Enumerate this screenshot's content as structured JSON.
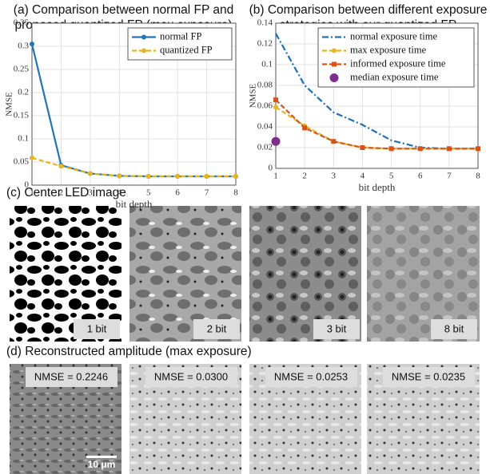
{
  "chart_data": [
    {
      "type": "line",
      "title": "(a) Comparison between normal FP and proposed quantized FP (max exposure)",
      "xlabel": "bit depth",
      "ylabel": "NMSE",
      "x": [
        1,
        2,
        3,
        4,
        5,
        6,
        7,
        8
      ],
      "xlim": [
        1,
        8
      ],
      "xticks": [
        1,
        2,
        3,
        4,
        5,
        6,
        7,
        8
      ],
      "ylim": [
        0,
        0.35
      ],
      "yticks": [
        0,
        0.05,
        0.1,
        0.15,
        0.2,
        0.25,
        0.3,
        0.35
      ],
      "grid": true,
      "legend": "upper right",
      "series": [
        {
          "name": "normal FP",
          "color": "#1f77b4",
          "linestyle": "solid",
          "marker": "o",
          "values": [
            0.305,
            0.043,
            0.025,
            0.02,
            0.019,
            0.019,
            0.019,
            0.019
          ]
        },
        {
          "name": "quantized FP",
          "color": "#e8b420",
          "linestyle": "dashed",
          "marker": "o",
          "values": [
            0.059,
            0.041,
            0.025,
            0.02,
            0.019,
            0.019,
            0.019,
            0.019
          ]
        }
      ]
    },
    {
      "type": "line",
      "title": "(b) Comparison between different exposure strategies with our quantized FP",
      "xlabel": "bit depth",
      "ylabel": "NMSE",
      "x": [
        1,
        2,
        3,
        4,
        5,
        6,
        7,
        8
      ],
      "xlim": [
        1,
        8
      ],
      "xticks": [
        1,
        2,
        3,
        4,
        5,
        6,
        7,
        8
      ],
      "ylim": [
        0,
        0.14
      ],
      "yticks": [
        0,
        0.02,
        0.04,
        0.06,
        0.08,
        0.1,
        0.12,
        0.14
      ],
      "grid": true,
      "legend": "upper right",
      "series": [
        {
          "name": "normal exposure time",
          "color": "#1f6fb4",
          "linestyle": "dashdot",
          "marker": "none",
          "values": [
            0.13,
            0.08,
            0.054,
            0.042,
            0.027,
            0.02,
            0.019,
            0.019
          ]
        },
        {
          "name": "max exposure time",
          "color": "#e8b420",
          "linestyle": "dashed",
          "marker": "o",
          "values": [
            0.059,
            0.041,
            0.026,
            0.02,
            0.019,
            0.019,
            0.019,
            0.019
          ]
        },
        {
          "name": "informed exposure time",
          "color": "#d95319",
          "linestyle": "dashed",
          "marker": "s",
          "values": [
            0.066,
            0.039,
            0.026,
            0.02,
            0.019,
            0.019,
            0.019,
            0.019
          ]
        },
        {
          "name": "median exposure time",
          "color": "#7e2f8e",
          "linestyle": "none",
          "marker": "big",
          "values": [
            0.026,
            null,
            null,
            null,
            null,
            null,
            null,
            null
          ]
        }
      ]
    }
  ],
  "panel_c": {
    "title": "(c) Center LED image",
    "labels": [
      "1 bit",
      "2 bit",
      "3 bit",
      "8 bit"
    ]
  },
  "panel_d": {
    "title": "(d) Reconstructed amplitude (max exposure)",
    "labels": [
      "NMSE = 0.2246",
      "NMSE = 0.0300",
      "NMSE = 0.0253",
      "NMSE = 0.0235"
    ],
    "scale_bar": "10 μm"
  }
}
